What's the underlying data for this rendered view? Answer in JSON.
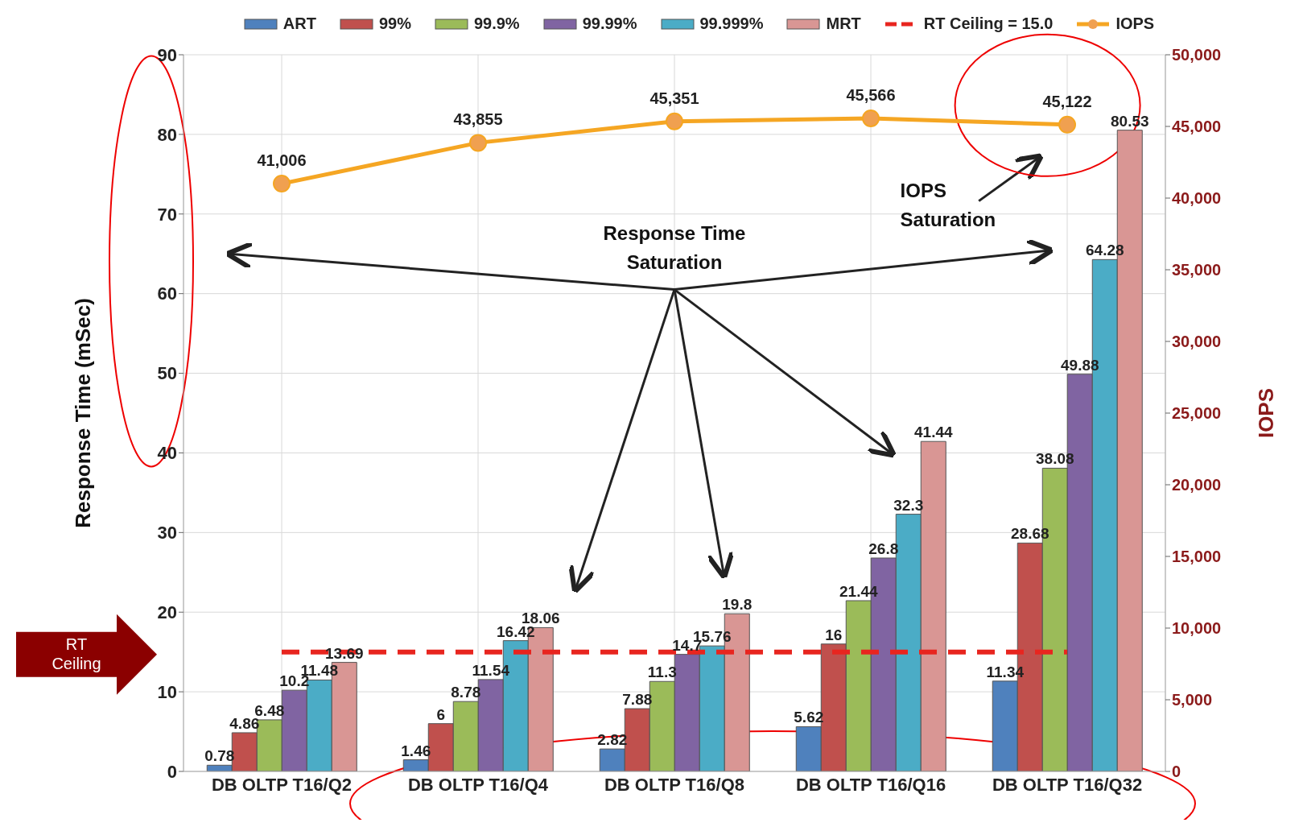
{
  "chart_data": {
    "type": "bar",
    "categories": [
      "DB OLTP T16/Q2",
      "DB OLTP T16/Q4",
      "DB OLTP T16/Q8",
      "DB OLTP T16/Q16",
      "DB OLTP T16/Q32"
    ],
    "ylabel": "Response Time (mSec)",
    "y2label": "IOPS",
    "ylim": [
      0,
      90
    ],
    "yticks": [
      0,
      10,
      20,
      30,
      40,
      50,
      60,
      70,
      80,
      90
    ],
    "y2lim": [
      0,
      50000
    ],
    "y2ticks": [
      {
        "value": 0,
        "label": "0"
      },
      {
        "value": 5000,
        "label": "5,000"
      },
      {
        "value": 10000,
        "label": "10,000"
      },
      {
        "value": 15000,
        "label": "15,000"
      },
      {
        "value": 20000,
        "label": "20,000"
      },
      {
        "value": 25000,
        "label": "25,000"
      },
      {
        "value": 30000,
        "label": "30,000"
      },
      {
        "value": 35000,
        "label": "35,000"
      },
      {
        "value": 40000,
        "label": "40,000"
      },
      {
        "value": 45000,
        "label": "45,000"
      },
      {
        "value": 50000,
        "label": "50,000"
      }
    ],
    "grid": true,
    "legend": "top",
    "data_labels": true,
    "annotations": [
      "RT Ceiling",
      "Response Time Saturation",
      "IOPS Saturation"
    ],
    "series": [
      {
        "name": "ART",
        "color": "#4f81bd",
        "values": [
          0.78,
          1.46,
          2.82,
          5.62,
          11.34
        ]
      },
      {
        "name": "99%",
        "color": "#c0504d",
        "values": [
          4.86,
          6,
          7.88,
          16,
          28.68
        ]
      },
      {
        "name": "99.9%",
        "color": "#9bbb59",
        "values": [
          6.48,
          8.78,
          11.3,
          21.44,
          38.08
        ]
      },
      {
        "name": "99.99%",
        "color": "#8064a2",
        "values": [
          10.2,
          11.54,
          14.7,
          26.8,
          49.88
        ]
      },
      {
        "name": "99.999%",
        "color": "#4bacc6",
        "values": [
          11.48,
          16.42,
          15.76,
          32.3,
          64.28
        ]
      },
      {
        "name": "MRT",
        "color": "#d99694",
        "values": [
          13.69,
          18.06,
          19.8,
          41.44,
          80.53
        ]
      },
      {
        "name": "RT Ceiling = 15.0",
        "type": "line",
        "color": "#e8251f",
        "line_style": "dashed",
        "marker": "none",
        "values": [
          15,
          15,
          15,
          15,
          15
        ],
        "value_labels": [
          null,
          null,
          null,
          null,
          null
        ]
      },
      {
        "name": "IOPS",
        "type": "line",
        "axis": "y2",
        "color": "#f5a623",
        "marker": "circle",
        "line_style": "solid",
        "values": [
          41006,
          43855,
          45351,
          45566,
          45122
        ],
        "value_labels": [
          "41,006",
          "43,855",
          "45,351",
          "45,566",
          "45,122"
        ]
      }
    ]
  }
}
